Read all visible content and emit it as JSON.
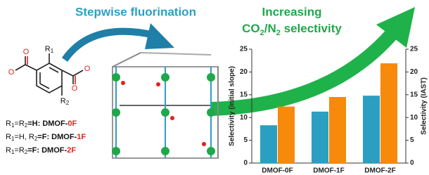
{
  "header": {
    "title": "Stepwise fluorination",
    "arrow_label": {
      "line1": "Increasing",
      "line2": [
        "CO",
        "2",
        "/N",
        "2",
        " selectivity"
      ]
    }
  },
  "molecule": {
    "atoms": [
      "R",
      "1",
      "R",
      "2",
      "O",
      "O",
      "O",
      "O"
    ]
  },
  "legend_lines": [
    [
      "R",
      "1",
      "=R",
      "2",
      "=H: DMOF-",
      "0F"
    ],
    [
      "R",
      "1",
      "=H, R",
      "2",
      "=F: DMOF-",
      "1F"
    ],
    [
      "R",
      "1",
      "=R",
      "2",
      "=F: DMOF-",
      "2F"
    ]
  ],
  "chart_data": {
    "type": "bar",
    "categories": [
      "DMOF-0F",
      "DMOF-1F",
      "DMOF-2F"
    ],
    "ylabel": "Selectivity (initial slope)",
    "y2label": "Selectivity (IAST)",
    "series": [
      {
        "color": "#2b9fc1",
        "values": [
          8.3,
          11.3,
          14.8
        ]
      },
      {
        "color": "#f7890b",
        "axis": "y2",
        "values": [
          12.4,
          14.5,
          21.9
        ]
      }
    ],
    "ylim": [
      0,
      25
    ],
    "yticks": [
      0,
      5,
      10,
      15,
      20,
      25
    ],
    "y2lim": [
      0,
      25
    ],
    "y2ticks": [
      0,
      5,
      10,
      15,
      20,
      25
    ]
  }
}
